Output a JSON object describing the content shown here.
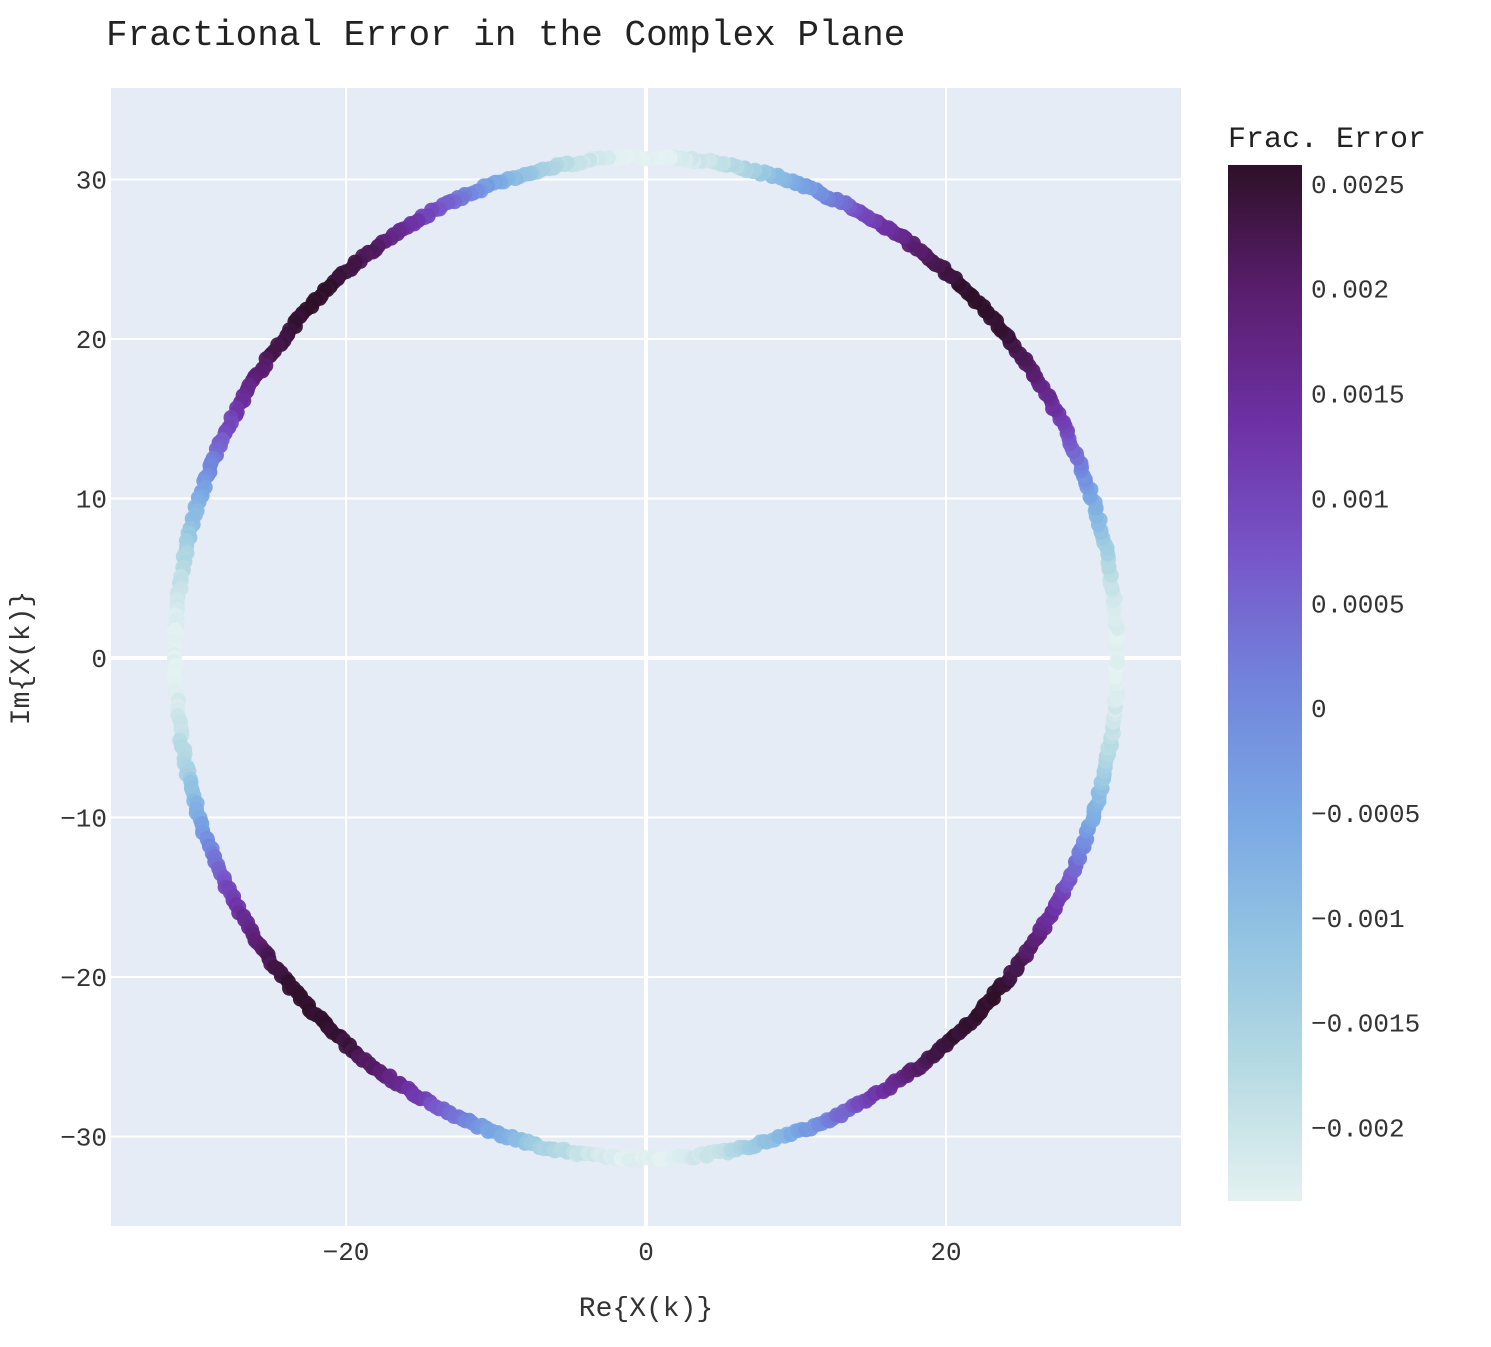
{
  "chart_data": {
    "type": "scatter",
    "title": "Fractional Error in the Complex Plane",
    "xlabel": "Re{X(k)}",
    "ylabel": "Im{X(k)}",
    "xlim": [
      -35.6,
      35.6
    ],
    "ylim": [
      -35.6,
      35.6
    ],
    "x_ticks": [
      -20,
      0,
      20
    ],
    "x_tick_labels": [
      "−20",
      "0",
      "20"
    ],
    "y_ticks": [
      -30,
      -20,
      -10,
      0,
      10,
      20,
      30
    ],
    "y_tick_labels": [
      "−30",
      "−20",
      "−10",
      "0",
      "10",
      "20",
      "30"
    ],
    "grid": true,
    "legend": "none",
    "colorbar": {
      "title": "Frac. Error",
      "range": [
        -0.00235,
        0.00259
      ],
      "ticks": [
        0.0025,
        0.002,
        0.0015,
        0.001,
        0.0005,
        0,
        -0.0005,
        -0.001,
        -0.0015,
        -0.002
      ],
      "tick_labels": [
        "0.0025",
        "0.002",
        "0.0015",
        "0.001",
        "0.0005",
        "0",
        "−0.0005",
        "−0.001",
        "−0.0015",
        "−0.002"
      ],
      "colorscale": [
        "#e4f1f1",
        "#b7dbe3",
        "#93c4e2",
        "#79a7e4",
        "#7284dc",
        "#7755c9",
        "#6e31a5",
        "#5a1e6f",
        "#2e1028"
      ]
    },
    "series": [
      {
        "description_points": "Points lie on a circle of radius ~31.4; color encodes fractional error with period of 4 cycles around the circle.",
        "radius": 31.4,
        "error_model": {
          "amplitude": 0.00245,
          "mean": 0.00012,
          "cycles": 4,
          "phase_deg": 0
        }
      }
    ]
  }
}
